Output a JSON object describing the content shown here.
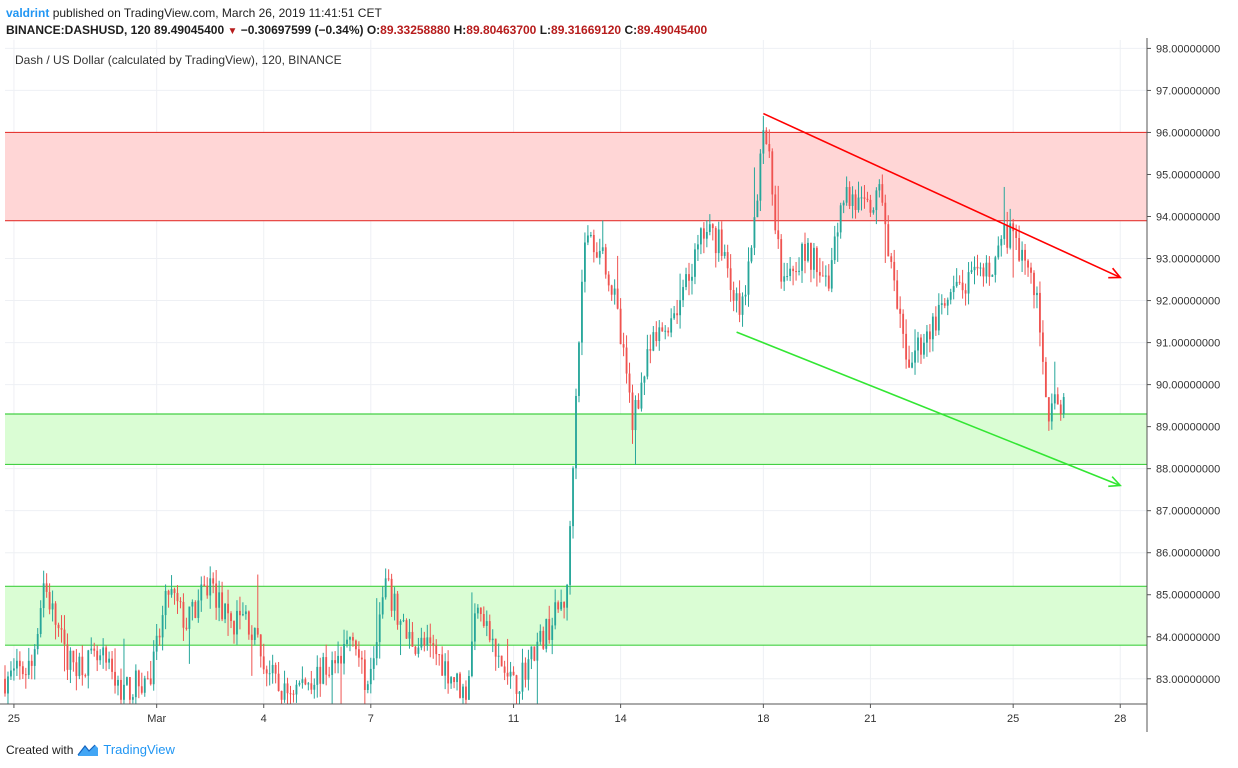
{
  "header": {
    "publisher": "valdrint",
    "published_text": "published on TradingView.com, March 26, 2019 11:41:51 CET",
    "symbol_line": "BINANCE:DASHUSD, 120",
    "last_price": "89.49045400",
    "change": "−0.30697599 (−0.34%)",
    "open_label": "O:",
    "open": "89.33258880",
    "high_label": "H:",
    "high": "89.80463700",
    "low_label": "L:",
    "low": "89.31669120",
    "close_label": "C:",
    "close": "89.49045400"
  },
  "footer": {
    "created_with": "Created with",
    "brand": "TradingView"
  },
  "colors": {
    "up": "#26a69a",
    "down": "#ef5350",
    "resistance_zone": "#ffd6d6",
    "support_zone": "#d8fdd2",
    "resistance_line": "#ff0000",
    "support_line": "#33e633"
  },
  "chart_data": {
    "type": "candlestick",
    "title": "Dash / US Dollar (calculated by TradingView), 120, BINANCE",
    "y_range": [
      82.4,
      98.2
    ],
    "x_range": [
      "2019-02-24T18:00",
      "2019-03-28T18:00"
    ],
    "y_ticks": [
      "83.00000000",
      "84.00000000",
      "85.00000000",
      "86.00000000",
      "87.00000000",
      "88.00000000",
      "89.00000000",
      "90.00000000",
      "91.00000000",
      "92.00000000",
      "93.00000000",
      "94.00000000",
      "95.00000000",
      "96.00000000",
      "97.00000000",
      "98.00000000"
    ],
    "x_ticks": [
      {
        "label": "25",
        "date": "2019-02-25"
      },
      {
        "label": "Mar",
        "date": "2019-03-01"
      },
      {
        "label": "4",
        "date": "2019-03-04"
      },
      {
        "label": "7",
        "date": "2019-03-07"
      },
      {
        "label": "11",
        "date": "2019-03-11"
      },
      {
        "label": "14",
        "date": "2019-03-14"
      },
      {
        "label": "18",
        "date": "2019-03-18"
      },
      {
        "label": "21",
        "date": "2019-03-21"
      },
      {
        "label": "25",
        "date": "2019-03-25"
      },
      {
        "label": "28",
        "date": "2019-03-28"
      }
    ],
    "zones": [
      {
        "kind": "resistance",
        "from": 93.9,
        "to": 96.0
      },
      {
        "kind": "support",
        "from": 88.1,
        "to": 89.3
      },
      {
        "kind": "support",
        "from": 83.8,
        "to": 85.2
      }
    ],
    "trendlines": [
      {
        "kind": "resistance",
        "from": {
          "date": "2019-03-18T00:00",
          "price": 96.45
        },
        "to": {
          "date": "2019-03-28T00:00",
          "price": 92.55
        }
      },
      {
        "kind": "support",
        "from": {
          "date": "2019-03-17T06:00",
          "price": 91.25
        },
        "to": {
          "date": "2019-03-28T00:00",
          "price": 87.6
        }
      }
    ],
    "price_path": [
      [
        "2019-02-24T18:00",
        83.0
      ],
      [
        "2019-02-25T12:00",
        83.3
      ],
      [
        "2019-02-25T20:00",
        85.3
      ],
      [
        "2019-02-26T12:00",
        83.4
      ],
      [
        "2019-02-27T12:00",
        83.4
      ],
      [
        "2019-02-28T00:00",
        82.7
      ],
      [
        "2019-02-28T20:00",
        83.0
      ],
      [
        "2019-03-01T08:00",
        85.1
      ],
      [
        "2019-03-01T20:00",
        84.3
      ],
      [
        "2019-03-02T12:00",
        85.3
      ],
      [
        "2019-03-03T00:00",
        84.3
      ],
      [
        "2019-03-03T12:00",
        84.5
      ],
      [
        "2019-03-04T00:00",
        83.4
      ],
      [
        "2019-03-04T12:00",
        82.6
      ],
      [
        "2019-03-06T02:00",
        83.4
      ],
      [
        "2019-03-06T12:00",
        84.2
      ],
      [
        "2019-03-06T20:00",
        82.8
      ],
      [
        "2019-03-07T10:00",
        85.2
      ],
      [
        "2019-03-08T00:00",
        84.0
      ],
      [
        "2019-03-08T20:00",
        83.6
      ],
      [
        "2019-03-09T16:00",
        82.6
      ],
      [
        "2019-03-10T00:00",
        85.0
      ],
      [
        "2019-03-10T12:00",
        83.5
      ],
      [
        "2019-03-11T00:00",
        82.8
      ],
      [
        "2019-03-11T20:00",
        84.0
      ],
      [
        "2019-03-12T12:00",
        85.0
      ],
      [
        "2019-03-12T18:00",
        90.0
      ],
      [
        "2019-03-13T00:00",
        93.5
      ],
      [
        "2019-03-13T12:00",
        93.2
      ],
      [
        "2019-03-13T20:00",
        92.0
      ],
      [
        "2019-03-14T08:00",
        89.2
      ],
      [
        "2019-03-14T20:00",
        90.8
      ],
      [
        "2019-03-15T08:00",
        91.5
      ],
      [
        "2019-03-15T20:00",
        92.3
      ],
      [
        "2019-03-16T08:00",
        93.6
      ],
      [
        "2019-03-16T20:00",
        93.4
      ],
      [
        "2019-03-17T08:00",
        91.6
      ],
      [
        "2019-03-17T16:00",
        93.0
      ],
      [
        "2019-03-18T00:00",
        96.4
      ],
      [
        "2019-03-18T12:00",
        92.8
      ],
      [
        "2019-03-19T06:00",
        93.1
      ],
      [
        "2019-03-19T20:00",
        92.6
      ],
      [
        "2019-03-20T06:00",
        94.6
      ],
      [
        "2019-03-20T20:00",
        94.1
      ],
      [
        "2019-03-21T08:00",
        94.5
      ],
      [
        "2019-03-21T16:00",
        92.2
      ],
      [
        "2019-03-22T00:00",
        90.5
      ],
      [
        "2019-03-22T20:00",
        91.5
      ],
      [
        "2019-03-23T12:00",
        92.3
      ],
      [
        "2019-03-24T06:00",
        92.6
      ],
      [
        "2019-03-24T20:00",
        93.6
      ],
      [
        "2019-03-25T08:00",
        93.0
      ],
      [
        "2019-03-25T16:00",
        92.0
      ],
      [
        "2019-03-26T00:00",
        89.3
      ],
      [
        "2019-03-26T08:00",
        89.6
      ],
      [
        "2019-03-26T11:00",
        89.49
      ]
    ]
  }
}
